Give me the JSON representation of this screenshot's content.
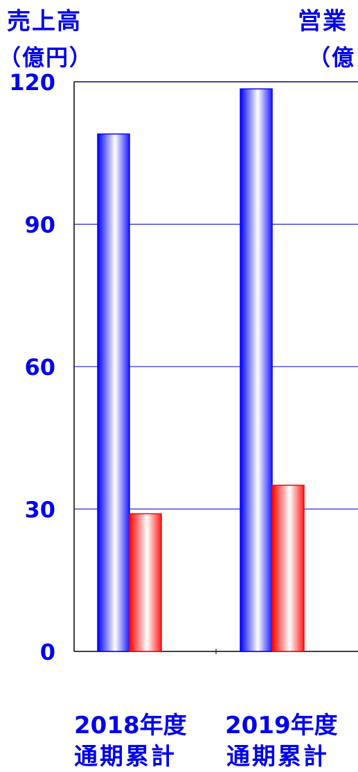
{
  "chart_data": {
    "type": "bar",
    "title": "",
    "y_axis_left": {
      "title_line1": "売上高",
      "title_line2": "（億円）",
      "ylim": [
        0,
        120
      ],
      "ticks": [
        "0",
        "30",
        "60",
        "90",
        "120"
      ]
    },
    "y_axis_right": {
      "title_line1": "営業",
      "title_line2": "（億"
    },
    "categories": [
      {
        "line1": "2018年度",
        "line2": "通期累計"
      },
      {
        "line1": "2019年度",
        "line2": "通期累計"
      }
    ],
    "series": [
      {
        "values": [
          109,
          118.5
        ],
        "color": "#0000ff"
      },
      {
        "values": [
          29,
          35
        ],
        "color": "#ff0000"
      }
    ],
    "grid": true
  }
}
